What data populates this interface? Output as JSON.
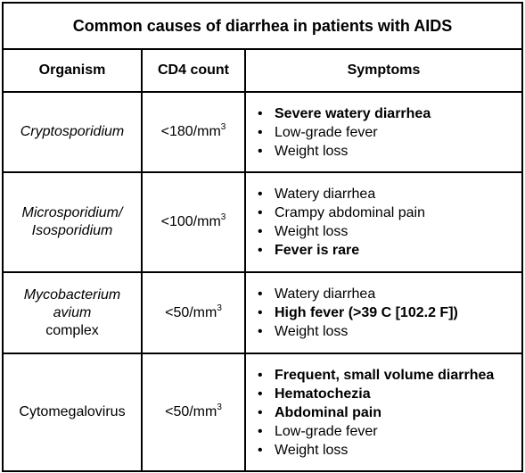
{
  "title": "Common causes of diarrhea in patients with AIDS",
  "headers": {
    "organism": "Organism",
    "cd4": "CD4 count",
    "symptoms": "Symptoms"
  },
  "rows": [
    {
      "organism_lines": [
        {
          "text": "Cryptosporidium",
          "italic": true
        }
      ],
      "cd4_value": "<180/mm",
      "cd4_sup": "3",
      "symptoms": [
        {
          "text": "Severe watery diarrhea",
          "bold": true
        },
        {
          "text": "Low-grade fever",
          "bold": false
        },
        {
          "text": "Weight loss",
          "bold": false
        }
      ]
    },
    {
      "organism_lines": [
        {
          "text": "Microsporidium/",
          "italic": true
        },
        {
          "text": "Isosporidium",
          "italic": true
        }
      ],
      "cd4_value": "<100/mm",
      "cd4_sup": "3",
      "symptoms": [
        {
          "text": "Watery diarrhea",
          "bold": false
        },
        {
          "text": "Crampy abdominal pain",
          "bold": false
        },
        {
          "text": "Weight loss",
          "bold": false
        },
        {
          "text": "Fever is rare",
          "bold": true
        }
      ]
    },
    {
      "organism_lines": [
        {
          "text": "Mycobacterium",
          "italic": true
        },
        {
          "text": "avium",
          "italic": true
        },
        {
          "text": "complex",
          "italic": false
        }
      ],
      "cd4_value": "<50/mm",
      "cd4_sup": "3",
      "symptoms": [
        {
          "text": "Watery diarrhea",
          "bold": false
        },
        {
          "text": "High fever (>39 C [102.2 F])",
          "bold": true
        },
        {
          "text": "Weight loss",
          "bold": false
        }
      ]
    },
    {
      "organism_lines": [
        {
          "text": "Cytomegalovirus",
          "italic": false
        }
      ],
      "cd4_value": "<50/mm",
      "cd4_sup": "3",
      "symptoms": [
        {
          "text": "Frequent, small volume diarrhea",
          "bold": true
        },
        {
          "text": "Hematochezia",
          "bold": true
        },
        {
          "text": "Abdominal pain",
          "bold": true
        },
        {
          "text": "Low-grade fever",
          "bold": false
        },
        {
          "text": "Weight loss",
          "bold": false
        }
      ]
    }
  ]
}
